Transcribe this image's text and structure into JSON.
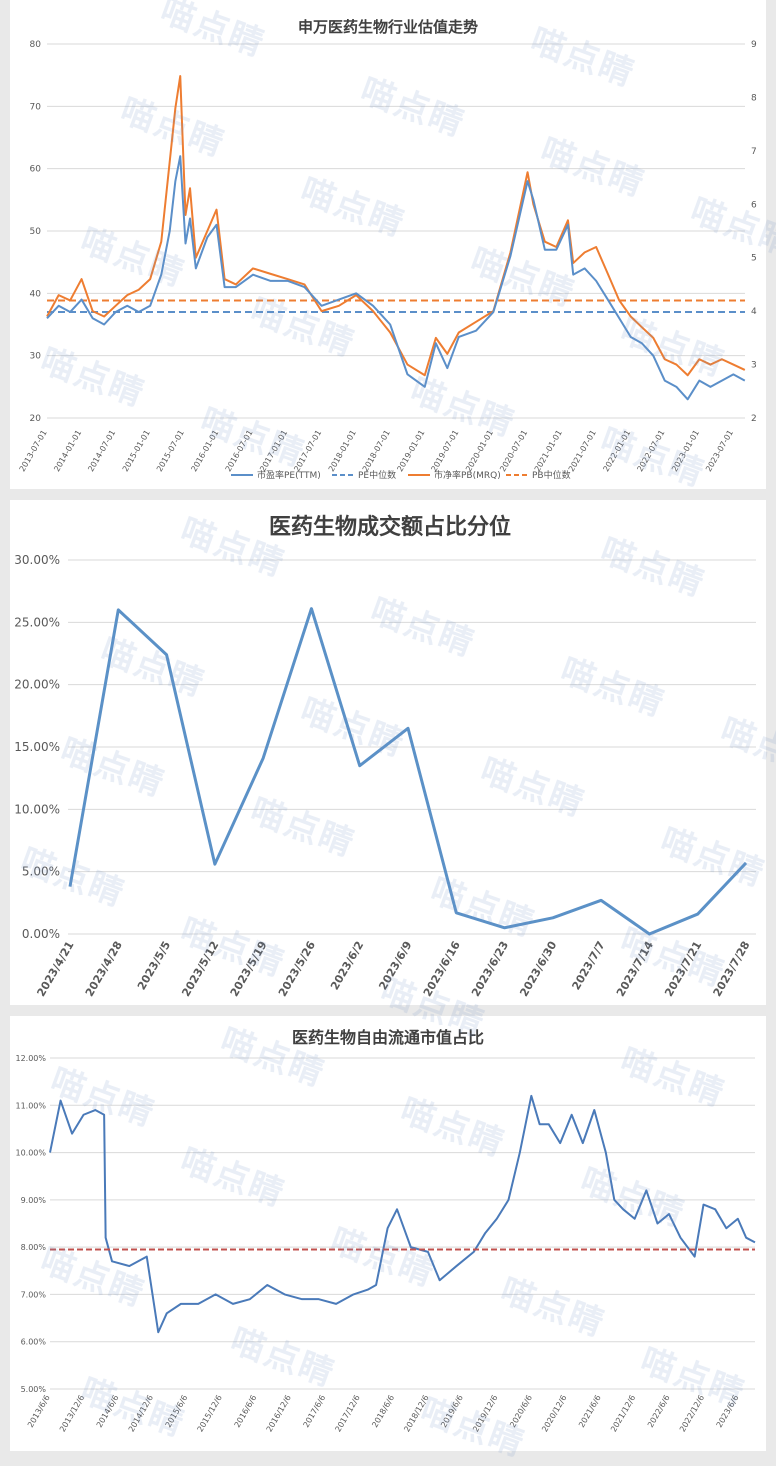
{
  "watermark": "喵点睛",
  "colors": {
    "blue": "#5b8fc9",
    "orange": "#ee7d31",
    "blue_line": "#5b91c7",
    "blue_line3": "#4a7ab9",
    "red": "#c0504d",
    "grid": "#d9d9d9",
    "tick": "#595959"
  },
  "chart_data": [
    {
      "type": "line",
      "title": "申万医药生物行业估值走势",
      "y_left": {
        "min": 20,
        "max": 80,
        "ticks": [
          "20",
          "30",
          "40",
          "50",
          "60",
          "70",
          "80"
        ]
      },
      "y_right": {
        "min": 2,
        "max": 9,
        "ticks": [
          "2",
          "3",
          "4",
          "5",
          "6",
          "7",
          "8",
          "9"
        ]
      },
      "x_range": [
        "2013-07-01",
        "2023-09-01"
      ],
      "x_ticks": [
        "2013-07-01",
        "2014-01-01",
        "2014-07-01",
        "2015-01-01",
        "2015-07-01",
        "2016-01-01",
        "2016-07-01",
        "2017-01-01",
        "2017-07-01",
        "2018-01-01",
        "2018-07-01",
        "2019-01-01",
        "2019-07-01",
        "2020-01-01",
        "2020-07-01",
        "2021-01-01",
        "2021-07-01",
        "2022-01-01",
        "2022-07-01",
        "2023-01-01",
        "2023-07-01"
      ],
      "legend": [
        "市盈率PE(TTM)",
        "PE中位数",
        "市净率PB(MRQ)",
        "PB中位数"
      ],
      "pe_median": 37,
      "pb_median": 4.2,
      "series": [
        {
          "name": "市盈率PE(TTM)",
          "axis": "left",
          "x": [
            "2013-07-01",
            "2013-09-01",
            "2013-11-01",
            "2014-01-01",
            "2014-03-01",
            "2014-05-01",
            "2014-07-01",
            "2014-09-01",
            "2014-11-01",
            "2015-01-01",
            "2015-03-01",
            "2015-04-15",
            "2015-05-15",
            "2015-06-10",
            "2015-07-08",
            "2015-08-01",
            "2015-09-01",
            "2015-11-01",
            "2015-12-20",
            "2016-02-01",
            "2016-04-01",
            "2016-07-01",
            "2016-10-01",
            "2017-01-01",
            "2017-04-01",
            "2017-07-01",
            "2017-10-01",
            "2018-01-01",
            "2018-04-01",
            "2018-07-01",
            "2018-10-01",
            "2019-01-01",
            "2019-03-01",
            "2019-05-01",
            "2019-07-01",
            "2019-10-01",
            "2020-01-01",
            "2020-04-01",
            "2020-07-01",
            "2020-08-01",
            "2020-10-01",
            "2020-12-01",
            "2021-02-01",
            "2021-03-01",
            "2021-05-01",
            "2021-07-01",
            "2021-09-01",
            "2021-11-01",
            "2022-01-01",
            "2022-03-01",
            "2022-05-01",
            "2022-07-01",
            "2022-09-01",
            "2022-10-31",
            "2023-01-01",
            "2023-03-01",
            "2023-05-01",
            "2023-07-01",
            "2023-08-31"
          ],
          "y": [
            36,
            38,
            37,
            39,
            36,
            35,
            37,
            38,
            37,
            38,
            43,
            50,
            58,
            62,
            48,
            52,
            44,
            49,
            51,
            41,
            41,
            43,
            42,
            42,
            41,
            38,
            39,
            40,
            38,
            35,
            27,
            25,
            32,
            28,
            33,
            34,
            37,
            46,
            58,
            55,
            47,
            47,
            51,
            43,
            44,
            42,
            39,
            36,
            33,
            32,
            30,
            26,
            25,
            23,
            26,
            25,
            26,
            27,
            26
          ]
        },
        {
          "name": "市净率PB(MRQ)",
          "axis": "right",
          "x": [
            "2013-07-01",
            "2013-09-01",
            "2013-11-01",
            "2014-01-01",
            "2014-03-01",
            "2014-05-01",
            "2014-07-01",
            "2014-09-01",
            "2014-11-01",
            "2015-01-01",
            "2015-03-01",
            "2015-04-15",
            "2015-05-15",
            "2015-06-10",
            "2015-07-08",
            "2015-08-01",
            "2015-09-01",
            "2015-11-01",
            "2015-12-20",
            "2016-02-01",
            "2016-04-01",
            "2016-07-01",
            "2016-10-01",
            "2017-01-01",
            "2017-04-01",
            "2017-07-01",
            "2017-10-01",
            "2018-01-01",
            "2018-04-01",
            "2018-07-01",
            "2018-10-01",
            "2019-01-01",
            "2019-03-01",
            "2019-05-01",
            "2019-07-01",
            "2019-10-01",
            "2020-01-01",
            "2020-04-01",
            "2020-07-01",
            "2020-08-01",
            "2020-10-01",
            "2020-12-01",
            "2021-02-01",
            "2021-03-01",
            "2021-05-01",
            "2021-07-01",
            "2021-09-01",
            "2021-11-01",
            "2022-01-01",
            "2022-03-01",
            "2022-05-01",
            "2022-07-01",
            "2022-09-01",
            "2022-10-31",
            "2023-01-01",
            "2023-03-01",
            "2023-05-01",
            "2023-07-01",
            "2023-08-31"
          ],
          "y": [
            3.9,
            4.3,
            4.2,
            4.6,
            4.0,
            3.9,
            4.1,
            4.3,
            4.4,
            4.6,
            5.3,
            6.8,
            7.8,
            8.4,
            5.8,
            6.3,
            5.0,
            5.5,
            5.9,
            4.6,
            4.5,
            4.8,
            4.7,
            4.6,
            4.5,
            4.0,
            4.1,
            4.3,
            4.0,
            3.6,
            3.0,
            2.8,
            3.5,
            3.2,
            3.6,
            3.8,
            4.0,
            5.1,
            6.6,
            6.0,
            5.3,
            5.2,
            5.7,
            4.9,
            5.1,
            5.2,
            4.7,
            4.2,
            3.9,
            3.7,
            3.5,
            3.1,
            3.0,
            2.8,
            3.1,
            3.0,
            3.1,
            3.0,
            2.9
          ]
        }
      ]
    },
    {
      "type": "line",
      "title": "医药生物成交额占比分位",
      "y_ticks": [
        "0.00%",
        "5.00%",
        "10.00%",
        "15.00%",
        "20.00%",
        "25.00%",
        "30.00%"
      ],
      "ylim": [
        0,
        30
      ],
      "categories": [
        "2023/4/21",
        "2023/4/28",
        "2023/5/5",
        "2023/5/12",
        "2023/5/19",
        "2023/5/26",
        "2023/6/2",
        "2023/6/9",
        "2023/6/16",
        "2023/6/23",
        "2023/6/30",
        "2023/7/7",
        "2023/7/14",
        "2023/7/21",
        "2023/7/28"
      ],
      "values": [
        3.8,
        26.0,
        22.4,
        5.6,
        14.1,
        26.1,
        13.5,
        16.5,
        1.7,
        0.5,
        1.3,
        2.7,
        0.0,
        1.6,
        5.7
      ]
    },
    {
      "type": "line",
      "title": "医药生物自由流通市值占比",
      "y_ticks": [
        "5.00%",
        "6.00%",
        "7.00%",
        "8.00%",
        "9.00%",
        "10.00%",
        "11.00%",
        "12.00%"
      ],
      "ylim": [
        5,
        12
      ],
      "x_range": [
        "2013-06-06",
        "2023-08-31"
      ],
      "x_ticks": [
        "2013/6/6",
        "2013/12/6",
        "2014/6/6",
        "2014/12/6",
        "2015/6/6",
        "2015/12/6",
        "2016/6/6",
        "2016/12/6",
        "2017/6/6",
        "2017/12/6",
        "2018/6/6",
        "2018/12/6",
        "2019/6/6",
        "2019/12/6",
        "2020/6/6",
        "2020/12/6",
        "2021/6/6",
        "2021/12/6",
        "2022/6/6",
        "2022/12/6",
        "2023/6/6"
      ],
      "reference_line": 7.95,
      "series": [
        {
          "name": "自由流通市值占比",
          "x": [
            "2013-06-06",
            "2013-08-01",
            "2013-10-01",
            "2013-12-01",
            "2014-02-01",
            "2014-03-20",
            "2014-03-28",
            "2014-05-01",
            "2014-08-01",
            "2014-11-01",
            "2015-01-01",
            "2015-02-15",
            "2015-05-01",
            "2015-08-01",
            "2015-11-01",
            "2016-02-01",
            "2016-05-01",
            "2016-08-01",
            "2016-11-01",
            "2017-02-01",
            "2017-05-01",
            "2017-08-01",
            "2017-11-01",
            "2018-01-15",
            "2018-03-01",
            "2018-05-01",
            "2018-06-20",
            "2018-09-01",
            "2018-12-01",
            "2019-02-01",
            "2019-05-01",
            "2019-08-01",
            "2019-10-01",
            "2019-12-01",
            "2020-02-01",
            "2020-04-01",
            "2020-06-01",
            "2020-07-15",
            "2020-09-01",
            "2020-11-01",
            "2021-01-01",
            "2021-03-01",
            "2021-05-01",
            "2021-07-01",
            "2021-08-15",
            "2021-10-01",
            "2021-12-01",
            "2022-02-01",
            "2022-04-01",
            "2022-06-01",
            "2022-08-01",
            "2022-10-15",
            "2022-12-01",
            "2023-02-01",
            "2023-04-01",
            "2023-06-01",
            "2023-07-15",
            "2023-08-31"
          ],
          "y": [
            10.0,
            11.1,
            10.4,
            10.8,
            10.9,
            10.8,
            8.2,
            7.7,
            7.6,
            7.8,
            6.2,
            6.6,
            6.8,
            6.8,
            7.0,
            6.8,
            6.9,
            7.2,
            7.0,
            6.9,
            6.9,
            6.8,
            7.0,
            7.1,
            7.2,
            8.4,
            8.8,
            8.0,
            7.9,
            7.3,
            7.6,
            7.9,
            8.3,
            8.6,
            9.0,
            10.0,
            11.2,
            10.6,
            10.6,
            10.2,
            10.8,
            10.2,
            10.9,
            10.0,
            9.0,
            8.8,
            8.6,
            9.2,
            8.5,
            8.7,
            8.2,
            7.8,
            8.9,
            8.8,
            8.4,
            8.6,
            8.2,
            8.1
          ]
        }
      ]
    }
  ]
}
